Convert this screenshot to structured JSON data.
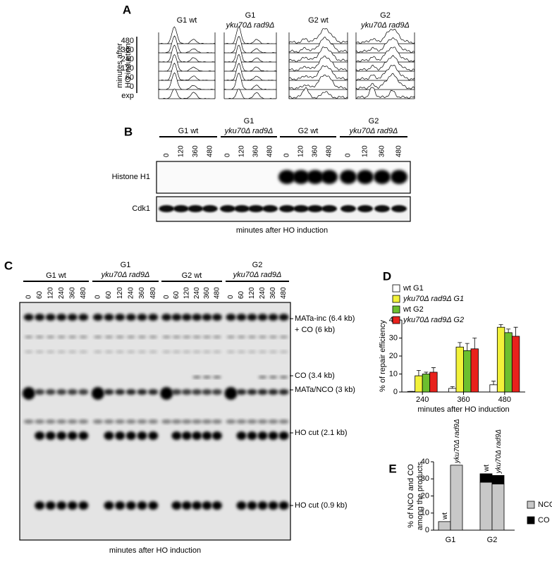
{
  "panel_a": {
    "letter": "A",
    "columns": [
      [
        "G1 wt"
      ],
      [
        "G1",
        "yku70Δ rad9Δ"
      ],
      [
        "G2 wt"
      ],
      [
        "G2",
        "yku70Δ rad9Δ"
      ]
    ],
    "row_labels": [
      "480",
      "360",
      "240",
      "120",
      "60",
      "0",
      "exp"
    ],
    "axis_label": [
      "minutes after",
      "HO induction"
    ]
  },
  "panel_b": {
    "letter": "B",
    "groups": [
      [
        "G1 wt"
      ],
      [
        "G1",
        "yku70Δ rad9Δ"
      ],
      [
        "G2 wt"
      ],
      [
        "G2",
        "yku70Δ rad9Δ"
      ]
    ],
    "lanes": [
      [
        "0",
        "120",
        "360",
        "480"
      ],
      [
        "0",
        "120",
        "360",
        "480"
      ],
      [
        "0",
        "120",
        "360",
        "480"
      ],
      [
        "0",
        "120",
        "360",
        "480"
      ]
    ],
    "rows": [
      "Histone H1",
      "Cdk1"
    ],
    "caption": "minutes after HO induction"
  },
  "panel_c": {
    "letter": "C",
    "groups": [
      [
        "G1 wt"
      ],
      [
        "G1",
        "yku70Δ rad9Δ"
      ],
      [
        "G2 wt"
      ],
      [
        "G2",
        "yku70Δ rad9Δ"
      ]
    ],
    "lanes": [
      [
        "0",
        "60",
        "120",
        "240",
        "360",
        "480"
      ],
      [
        "0",
        "60",
        "120",
        "240",
        "360",
        "480"
      ],
      [
        "0",
        "60",
        "120",
        "240",
        "360",
        "480"
      ],
      [
        "0",
        "60",
        "120",
        "240",
        "360",
        "480"
      ]
    ],
    "bands": [
      "MATa-inc (6.4 kb)",
      "+ CO (6 kb)",
      "CO (3.4 kb)",
      "MATa/NCO (3 kb)",
      "HO cut (2.1 kb)",
      "HO cut (0.9 kb)"
    ],
    "caption": "minutes after HO induction"
  },
  "chart_data": [
    {
      "type": "bar",
      "panel_label": "D",
      "ylabel": "% of repair efficiency",
      "xlabel": "minutes after HO induction",
      "categories": [
        "240",
        "360",
        "480"
      ],
      "series": [
        {
          "name": "wt G1",
          "color": "#ffffff",
          "values": [
            0.3,
            2,
            4
          ],
          "errors": [
            0,
            1,
            2
          ]
        },
        {
          "name": "yku70Δ rad9Δ G1",
          "color": "#f2f23a",
          "values": [
            9,
            25,
            36
          ],
          "errors": [
            3,
            2.5,
            1.5
          ]
        },
        {
          "name": "wt G2",
          "color": "#6cbf2e",
          "values": [
            10,
            23,
            33
          ],
          "errors": [
            1,
            4,
            2
          ]
        },
        {
          "name": "yku70Δ rad9Δ G2",
          "color": "#e8221c",
          "values": [
            11,
            24,
            31
          ],
          "errors": [
            2.5,
            6,
            5
          ]
        }
      ],
      "ylim": [
        0,
        40
      ],
      "yticks": [
        0,
        10,
        20,
        30,
        40
      ]
    },
    {
      "type": "stacked_bar",
      "panel_label": "E",
      "ylabel": [
        "% of NCO and CO",
        "among the products"
      ],
      "categories": [
        "wt",
        "yku70Δ rad9Δ",
        "wt",
        "yku70Δ rad9Δ"
      ],
      "groups": [
        "G1",
        "G2"
      ],
      "series": [
        {
          "name": "NCO",
          "color": "#c8c8c8",
          "values": [
            5,
            38,
            28,
            27
          ]
        },
        {
          "name": "CO",
          "color": "#000000",
          "values": [
            0,
            0,
            5,
            5
          ]
        }
      ],
      "ylim": [
        0,
        40
      ],
      "yticks": [
        0,
        10,
        20,
        30,
        40
      ]
    }
  ]
}
